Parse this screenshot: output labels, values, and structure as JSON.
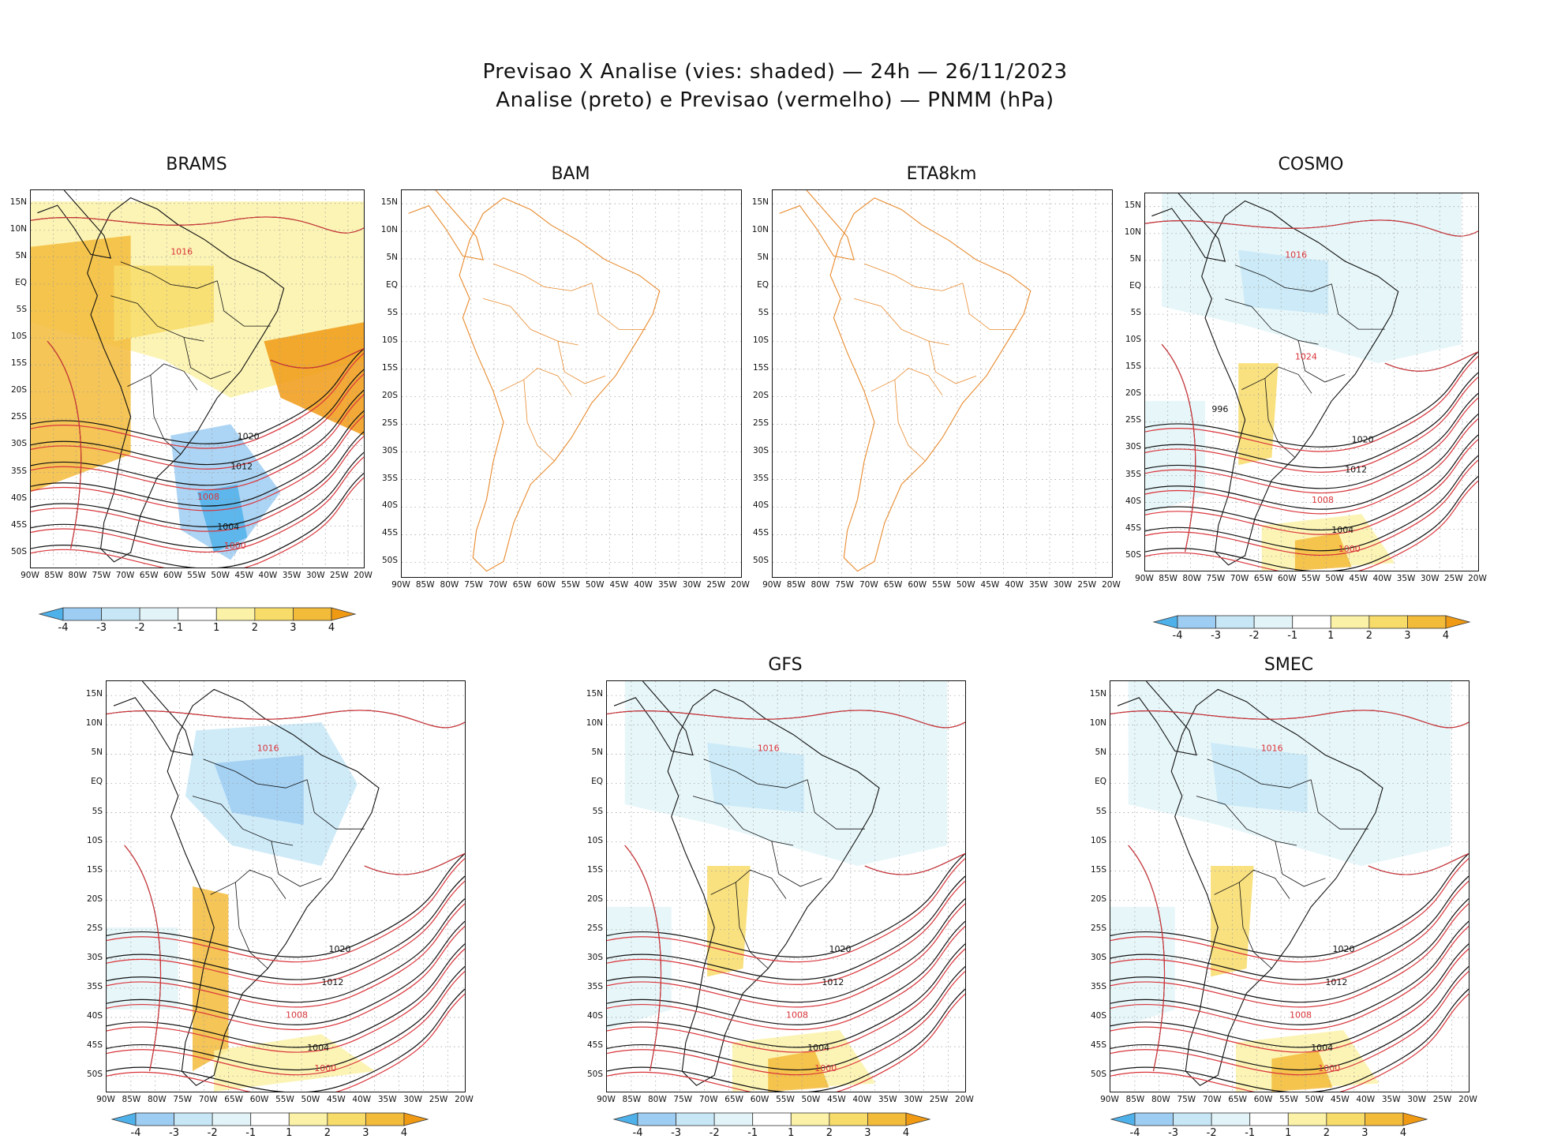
{
  "header": {
    "line1": "Previsao X Analise (vies: shaded) — 24h — 26/11/2023",
    "line2": "Analise (preto) e Previsao (vermelho) — PNMM (hPa)"
  },
  "axes": {
    "lat_labels": [
      "15N",
      "10N",
      "5N",
      "EQ",
      "5S",
      "10S",
      "15S",
      "20S",
      "25S",
      "30S",
      "35S",
      "40S",
      "45S",
      "50S"
    ],
    "lon_labels": [
      "90W",
      "85W",
      "80W",
      "75W",
      "70W",
      "65W",
      "60W",
      "55W",
      "50W",
      "45W",
      "40W",
      "35W",
      "30W",
      "25W",
      "20W"
    ]
  },
  "colorbar": {
    "labels": [
      "-4",
      "-3",
      "-2",
      "-1",
      "1",
      "2",
      "3",
      "4"
    ],
    "colors": [
      "#4fb1ea",
      "#9dcdf2",
      "#c7e7f7",
      "#e3f4f8",
      "#ffffff",
      "#fbf2a8",
      "#f8dc6a",
      "#f3bb3a",
      "#f09a14"
    ]
  },
  "colors": {
    "analysis": "#111111",
    "forecast": "#d9343a",
    "coast_empty": "#e88a2c",
    "grid": "#999999"
  },
  "panels": [
    {
      "name": "BRAMS",
      "has_data": true,
      "has_colorbar": true,
      "bias": "warm",
      "contours": [
        "1012",
        "1016",
        "1020",
        "1008",
        "1004",
        "1000"
      ]
    },
    {
      "name": "BAM",
      "has_data": false,
      "has_colorbar": false,
      "bias": "none",
      "contours": []
    },
    {
      "name": "ETA8km",
      "has_data": false,
      "has_colorbar": false,
      "bias": "none",
      "contours": []
    },
    {
      "name": "COSMO",
      "has_data": true,
      "has_colorbar": true,
      "bias": "mixed",
      "contours": [
        "1012",
        "1016",
        "1020",
        "1008",
        "1004",
        "1000",
        "996",
        "1024"
      ]
    },
    {
      "name": "",
      "has_data": true,
      "has_colorbar": true,
      "bias": "cold",
      "contours": [
        "1012",
        "1016",
        "1020",
        "1008",
        "1004",
        "1000"
      ]
    },
    {
      "name": "GFS",
      "has_data": true,
      "has_colorbar": true,
      "bias": "mixed",
      "contours": [
        "1012",
        "1016",
        "1020",
        "1008",
        "1004",
        "1000"
      ]
    },
    {
      "name": "SMEC",
      "has_data": true,
      "has_colorbar": true,
      "bias": "mixed",
      "contours": [
        "1012",
        "1016",
        "1020",
        "1008",
        "1004",
        "1000"
      ]
    }
  ]
}
